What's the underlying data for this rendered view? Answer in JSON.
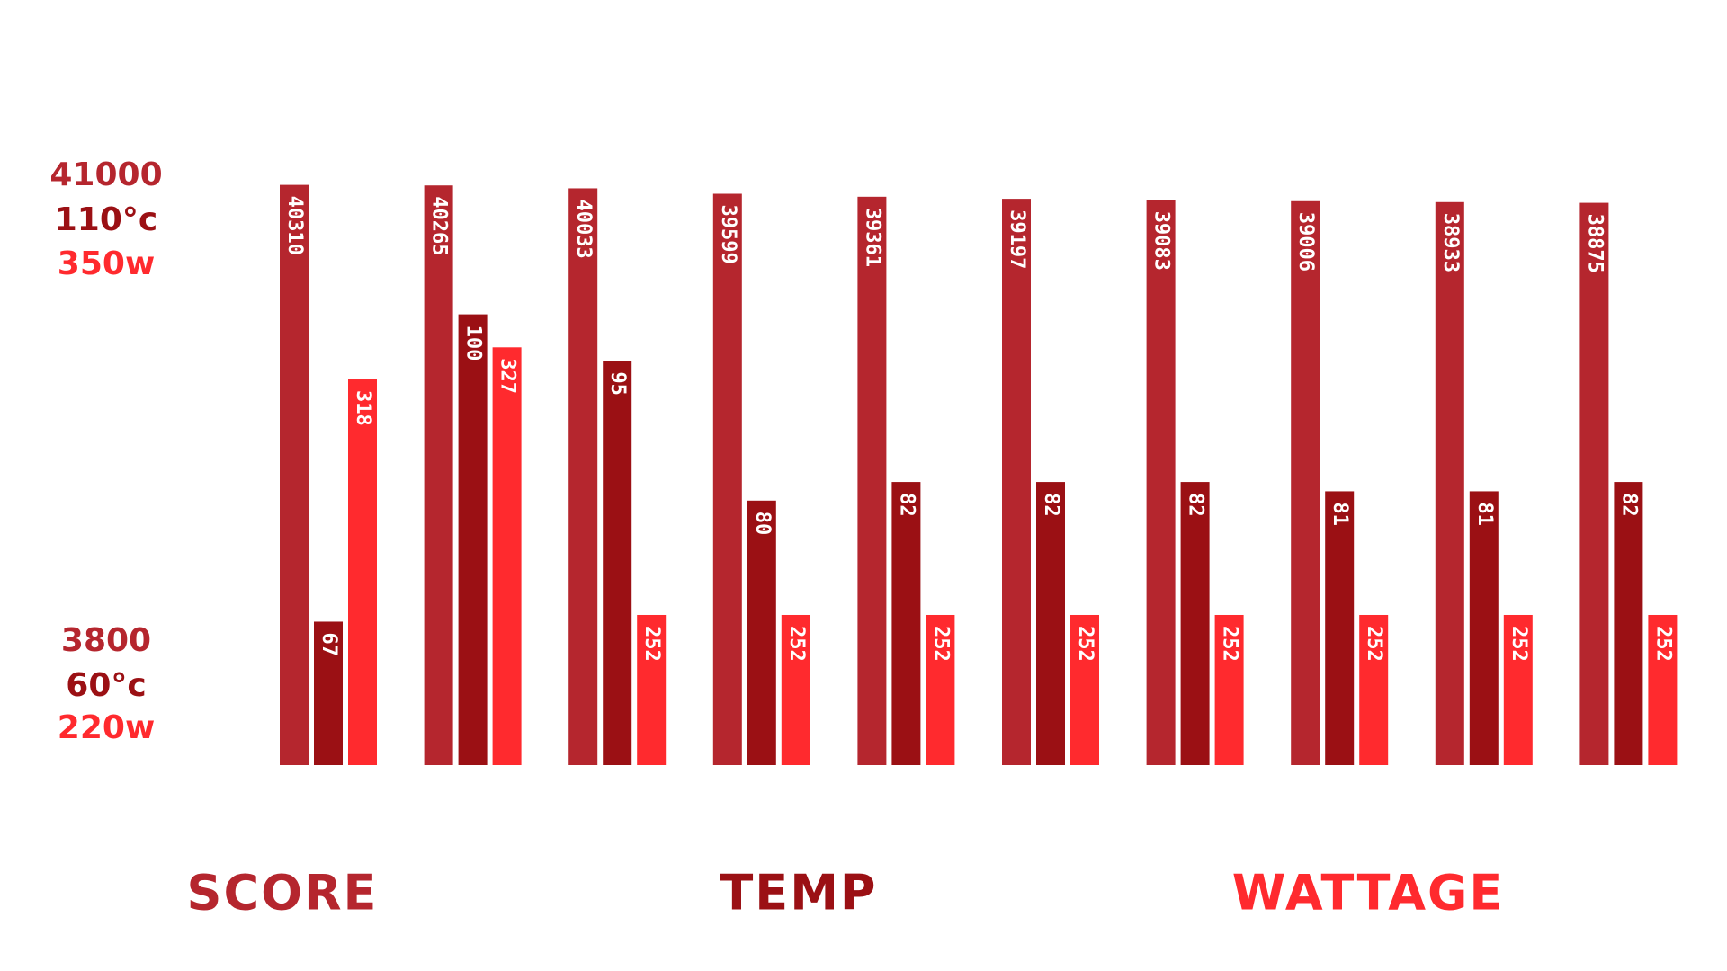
{
  "chart_data": {
    "type": "bar",
    "series": [
      {
        "name": "SCORE",
        "color": "#b5262e",
        "values": [
          40310,
          40265,
          40033,
          39599,
          39361,
          39197,
          39083,
          39006,
          38933,
          38875
        ]
      },
      {
        "name": "TEMP",
        "color": "#9b1014",
        "axis": "y2",
        "values": [
          67,
          100,
          95,
          80,
          82,
          82,
          82,
          81,
          81,
          82
        ]
      },
      {
        "name": "WATTAGE",
        "color": "#ff2a2e",
        "axis": "y3",
        "values": [
          318,
          327,
          252,
          252,
          252,
          252,
          252,
          252,
          252,
          252
        ]
      }
    ],
    "ylim": [
      3800,
      41000
    ],
    "yticks": [
      3800,
      41000
    ],
    "y2lim": [
      60,
      110
    ],
    "y2ticks": [
      {
        "value": 60,
        "label": "60°c"
      },
      {
        "value": 110,
        "label": "110°c"
      }
    ],
    "y3lim": [
      220,
      350
    ],
    "y3ticks": [
      {
        "value": 220,
        "label": "220w"
      },
      {
        "value": 350,
        "label": "350w"
      }
    ]
  }
}
